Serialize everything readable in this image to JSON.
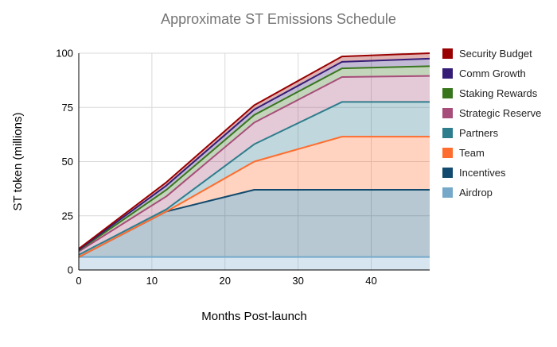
{
  "title": "Approximate ST Emissions Schedule",
  "x_axis_label": "Months Post-launch",
  "y_axis_label": "ST token (millions)",
  "chart_data": {
    "type": "area",
    "stacked": true,
    "title": "Approximate ST Emissions Schedule",
    "xlabel": "Months Post-launch",
    "ylabel": "ST token (millions)",
    "x": [
      0,
      12,
      24,
      36,
      48
    ],
    "x_ticks": [
      0,
      10,
      20,
      30,
      40
    ],
    "y_ticks": [
      0,
      25,
      50,
      75,
      100
    ],
    "xlim": [
      0,
      48
    ],
    "ylim": [
      0,
      100
    ],
    "grid": true,
    "legend_position": "right",
    "series_bottom_to_top": [
      {
        "name": "Airdrop",
        "color": "#76a9c9",
        "values": [
          6,
          6,
          6,
          6,
          6
        ]
      },
      {
        "name": "Incentives",
        "color": "#114a6e",
        "values": [
          0,
          21,
          31,
          31,
          31
        ]
      },
      {
        "name": "Team",
        "color": "#ff6d2e",
        "values": [
          0,
          0,
          13,
          24.5,
          24.5
        ]
      },
      {
        "name": "Partners",
        "color": "#2e7d8d",
        "values": [
          1,
          1,
          8,
          16,
          16
        ]
      },
      {
        "name": "Strategic Reserve",
        "color": "#a64d79",
        "values": [
          1.5,
          6,
          10,
          11.5,
          12
        ]
      },
      {
        "name": "Staking Rewards",
        "color": "#38761d",
        "values": [
          0.5,
          3,
          3.5,
          4,
          4.5
        ]
      },
      {
        "name": "Comm Growth",
        "color": "#351c75",
        "values": [
          0.3,
          2,
          2.5,
          3,
          3.5
        ]
      },
      {
        "name": "Security Budget",
        "color": "#990000",
        "values": [
          0.5,
          1.5,
          2,
          2.5,
          2.5
        ]
      }
    ],
    "legend_top_to_bottom": [
      "Security Budget",
      "Comm Growth",
      "Staking Rewards",
      "Strategic Reserve",
      "Partners",
      "Team",
      "Incentives",
      "Airdrop"
    ],
    "cumulative_tops": {
      "Airdrop": [
        6,
        6,
        6,
        6,
        6
      ],
      "Incentives": [
        6,
        27,
        37,
        37,
        37
      ],
      "Team": [
        6,
        27,
        50,
        61.5,
        61.5
      ],
      "Partners": [
        7,
        28,
        58,
        77.5,
        77.5
      ],
      "Strategic Reserve": [
        8.5,
        34,
        68,
        89,
        89.5
      ],
      "Staking Rewards": [
        9,
        37,
        71.5,
        93,
        94
      ],
      "Comm Growth": [
        9.3,
        39,
        74,
        96,
        97.5
      ],
      "Security Budget": [
        9.8,
        40.5,
        76,
        98.5,
        100
      ]
    },
    "colors": {
      "grid": "#d9d9d9",
      "axis_line": "#000000",
      "title_text": "#757575",
      "tick_text": "#000000",
      "fill_opacity": 0.3
    }
  }
}
